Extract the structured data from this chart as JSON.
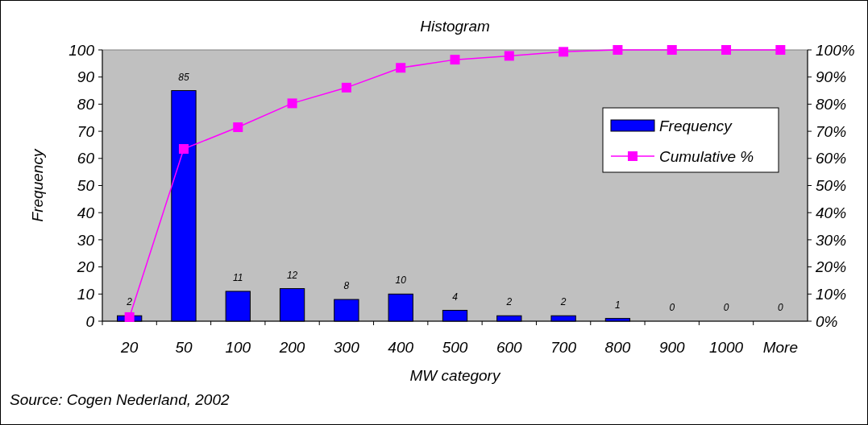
{
  "chart_data": {
    "type": "bar",
    "title": "Histogram",
    "xlabel": "MW category",
    "ylabel": "Frequency",
    "categories": [
      "20",
      "50",
      "100",
      "200",
      "300",
      "400",
      "500",
      "600",
      "700",
      "800",
      "900",
      "1000",
      "More"
    ],
    "series": [
      {
        "name": "Frequency",
        "color": "#0000ff",
        "values": [
          2,
          85,
          11,
          12,
          8,
          10,
          4,
          2,
          2,
          1,
          0,
          0,
          0
        ],
        "value_labels": [
          "2",
          "85",
          "11",
          "12",
          "8",
          "10",
          "4",
          "2",
          "2",
          "1",
          "0",
          "0",
          "0"
        ]
      },
      {
        "name": "Cumulative %",
        "type": "line",
        "axis": "y2",
        "color": "#ff00ff",
        "values": [
          1.5,
          63.5,
          71.5,
          80.3,
          86.1,
          93.4,
          96.4,
          97.8,
          99.3,
          100,
          100,
          100,
          100
        ]
      }
    ],
    "ylim": [
      0,
      100
    ],
    "yticks": [
      0,
      10,
      20,
      30,
      40,
      50,
      60,
      70,
      80,
      90,
      100
    ],
    "y2lim": [
      0,
      100
    ],
    "y2ticks": [
      {
        "value": 0,
        "label": "0%"
      },
      {
        "value": 10,
        "label": "10%"
      },
      {
        "value": 20,
        "label": "20%"
      },
      {
        "value": 30,
        "label": "30%"
      },
      {
        "value": 40,
        "label": "40%"
      },
      {
        "value": 50,
        "label": "50%"
      },
      {
        "value": 60,
        "label": "60%"
      },
      {
        "value": 70,
        "label": "70%"
      },
      {
        "value": 80,
        "label": "80%"
      },
      {
        "value": 90,
        "label": "90%"
      },
      {
        "value": 100,
        "label": "100%"
      }
    ],
    "grid": false,
    "legend": "right",
    "marker": "square",
    "line_style": "solid",
    "annotations": [
      "Source: Cogen Nederland, 2002"
    ]
  }
}
